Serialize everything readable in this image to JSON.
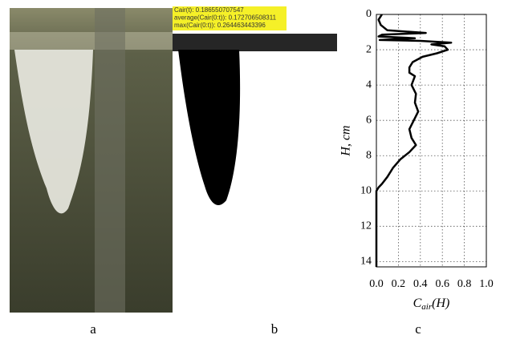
{
  "panel_labels": [
    "a",
    "b",
    "c"
  ],
  "overlay_text": [
    "Cair(t): 0.186550707547",
    "average(Cair(0:t)): 0.172706508311",
    "max(Cair(0:t)): 0.264463443396"
  ],
  "chart_data": {
    "type": "line",
    "xlabel_parts": [
      "C",
      "air",
      "(H)"
    ],
    "ylabel": "H, cm",
    "y_inverted": true,
    "grid": true,
    "xlim": [
      0,
      1
    ],
    "ylim": [
      0,
      14.3
    ],
    "xticks": [
      {
        "value": 0,
        "label": "0.0"
      },
      0.2,
      0.4,
      0.6,
      0.8,
      {
        "value": 1,
        "label": "1.0"
      }
    ],
    "yticks": [
      0,
      2,
      4,
      6,
      8,
      10,
      12,
      14
    ],
    "x": [
      0.05,
      0.02,
      0.04,
      0.1,
      0.45,
      0.05,
      0.02,
      0.35,
      0.03,
      0.4,
      0.68,
      0.5,
      0.62,
      0.65,
      0.55,
      0.42,
      0.33,
      0.3,
      0.3,
      0.35,
      0.32,
      0.36,
      0.35,
      0.38,
      0.34,
      0.3,
      0.32,
      0.36,
      0.3,
      0.22,
      0.15,
      0.1,
      0.05,
      0.02,
      0,
      0
    ],
    "series": [
      {
        "color": "#000000",
        "values": [
          0,
          0.3,
          0.6,
          0.9,
          1.05,
          1.15,
          1.25,
          1.35,
          1.45,
          1.5,
          1.6,
          1.7,
          1.8,
          2.0,
          2.2,
          2.4,
          2.7,
          3.0,
          3.3,
          3.5,
          4.0,
          4.5,
          5.0,
          5.5,
          6.0,
          6.5,
          7.0,
          7.4,
          7.8,
          8.2,
          8.7,
          9.2,
          9.6,
          9.8,
          10.0,
          14.3
        ]
      }
    ]
  }
}
